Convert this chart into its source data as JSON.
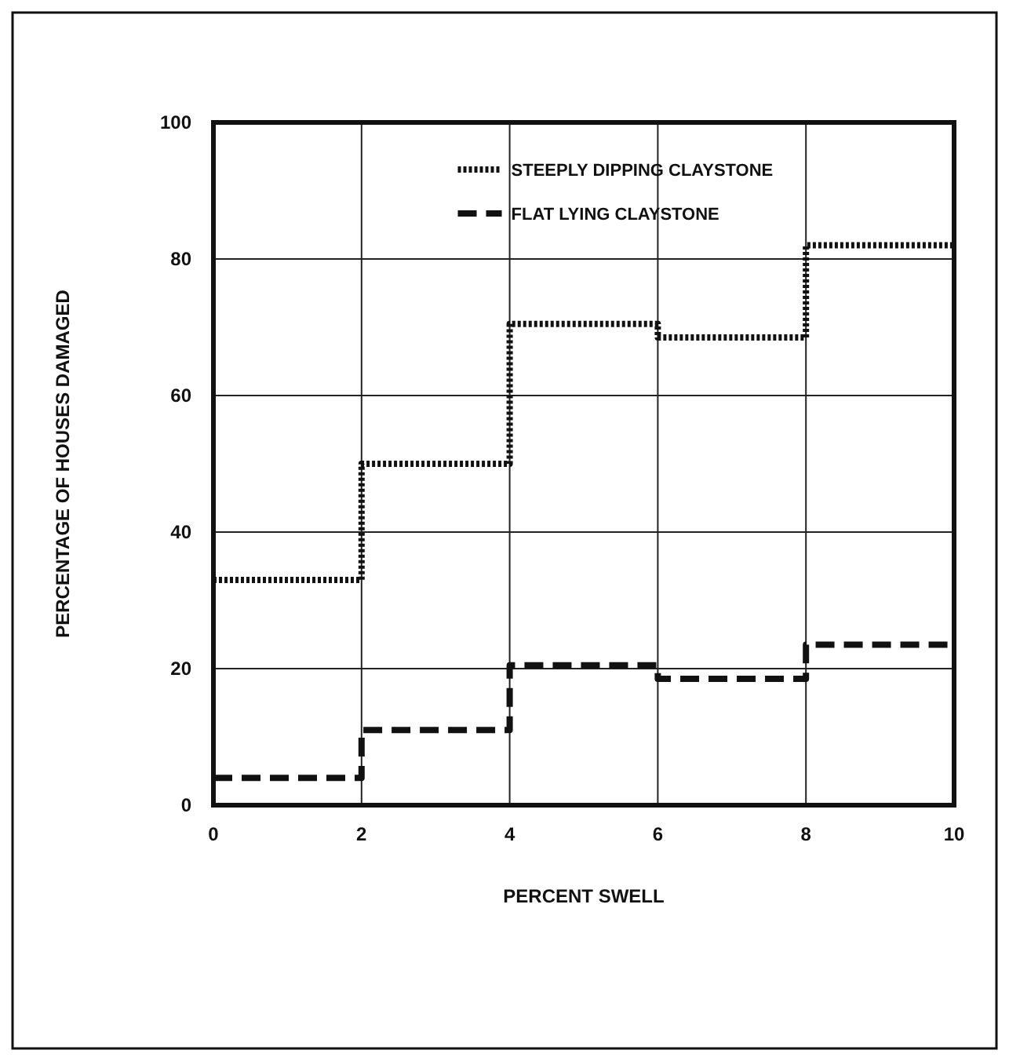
{
  "chart_data": {
    "type": "step",
    "xlabel": "PERCENT SWELL",
    "ylabel": "PERCENTAGE OF HOUSES DAMAGED",
    "x": [
      0,
      2,
      4,
      6,
      8,
      10
    ],
    "series": [
      {
        "name": "STEEPLY DIPPING CLAYSTONE",
        "color": "#111111",
        "line_style": "dotted",
        "values": [
          33,
          50,
          70.5,
          68.5,
          82,
          82
        ]
      },
      {
        "name": "FLAT LYING CLAYSTONE",
        "color": "#111111",
        "line_style": "dashed",
        "values": [
          4,
          11,
          20.5,
          18.5,
          23.5,
          23.5
        ]
      }
    ],
    "xlim": [
      0,
      10
    ],
    "xticks": [
      0,
      2,
      4,
      6,
      8,
      10
    ],
    "ylim": [
      0,
      100
    ],
    "yticks": [
      0,
      20,
      40,
      60,
      80,
      100
    ],
    "grid": true,
    "legend": "top"
  }
}
